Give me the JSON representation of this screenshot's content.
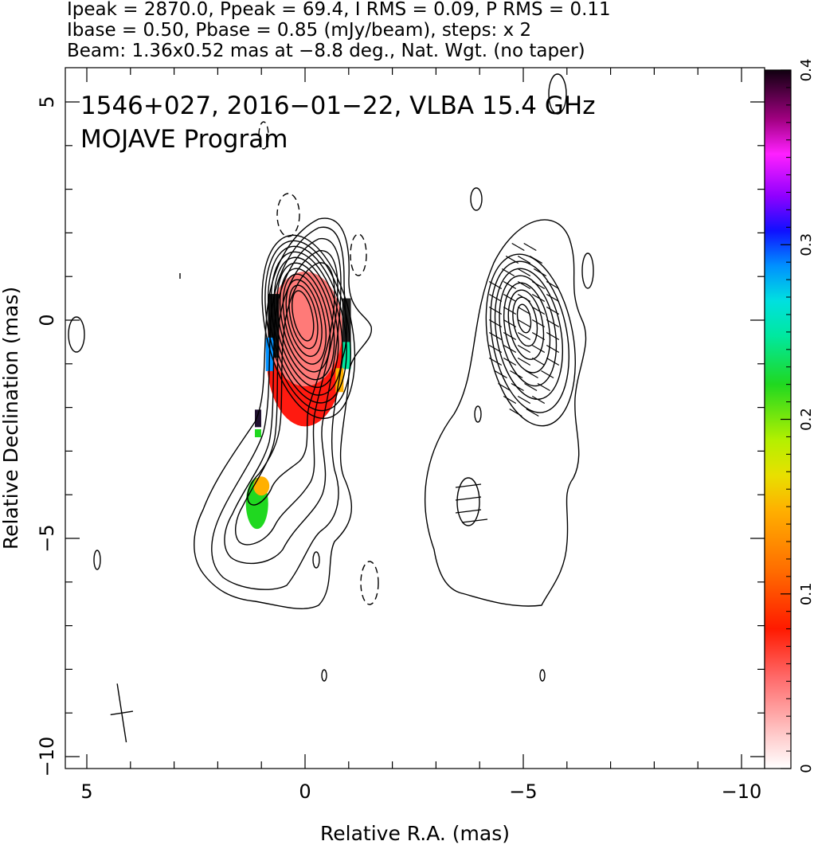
{
  "header": {
    "line1": "Ipeak = 2870.0, Ppeak = 69.4, I RMS = 0.09, P RMS = 0.11",
    "line2": "Ibase = 0.50, Pbase = 0.85 (mJy/beam), steps: x 2",
    "line3": "Beam: 1.36x0.52 mas at −8.8 deg., Nat. Wgt. (no taper)"
  },
  "chart_data": {
    "type": "contour",
    "title": "1546+027, 2016−01−22, VLBA 15.4 GHz",
    "subtitle": "MOJAVE Program",
    "xlabel": "Relative R.A. (mas)",
    "ylabel": "Relative Declination (mas)",
    "xlim": [
      5.5,
      -10.5
    ],
    "ylim": [
      -10.5,
      5.8
    ],
    "xticks": [
      5,
      0,
      -5,
      -10
    ],
    "xtick_labels": [
      "5",
      "0",
      "−5",
      "−10"
    ],
    "yticks": [
      5,
      0,
      -5,
      -10
    ],
    "ytick_labels": [
      "5",
      "0",
      "−5",
      "−10"
    ],
    "colorbar": {
      "range": [
        0,
        0.4
      ],
      "ticks": [
        0,
        0.1,
        0.2,
        0.3,
        0.4
      ],
      "tick_labels": [
        "0",
        "0.1",
        "0.2",
        "0.3",
        "0.4"
      ]
    },
    "panels": [
      "total intensity contours with fractional polarization color",
      "polarized intensity contours with EVPA sticks"
    ],
    "panel_offset_mas": -5.0,
    "beam": {
      "major": 1.36,
      "minor": 0.52,
      "pa_deg": -8.8,
      "center": [
        4.2,
        -9.0
      ]
    },
    "peak": [
      0,
      0
    ],
    "fractional_polarization": [
      {
        "region": "core",
        "center": [
          0.0,
          -0.3
        ],
        "value": 0.03
      },
      {
        "region": "core-east-edge",
        "center": [
          0.85,
          0.2
        ],
        "value": 0.3
      },
      {
        "region": "core-west-edge",
        "center": [
          -0.9,
          -0.5
        ],
        "value": 0.25
      },
      {
        "region": "jet-knot",
        "center": [
          1.1,
          -4.3
        ],
        "value": 0.18
      }
    ]
  }
}
